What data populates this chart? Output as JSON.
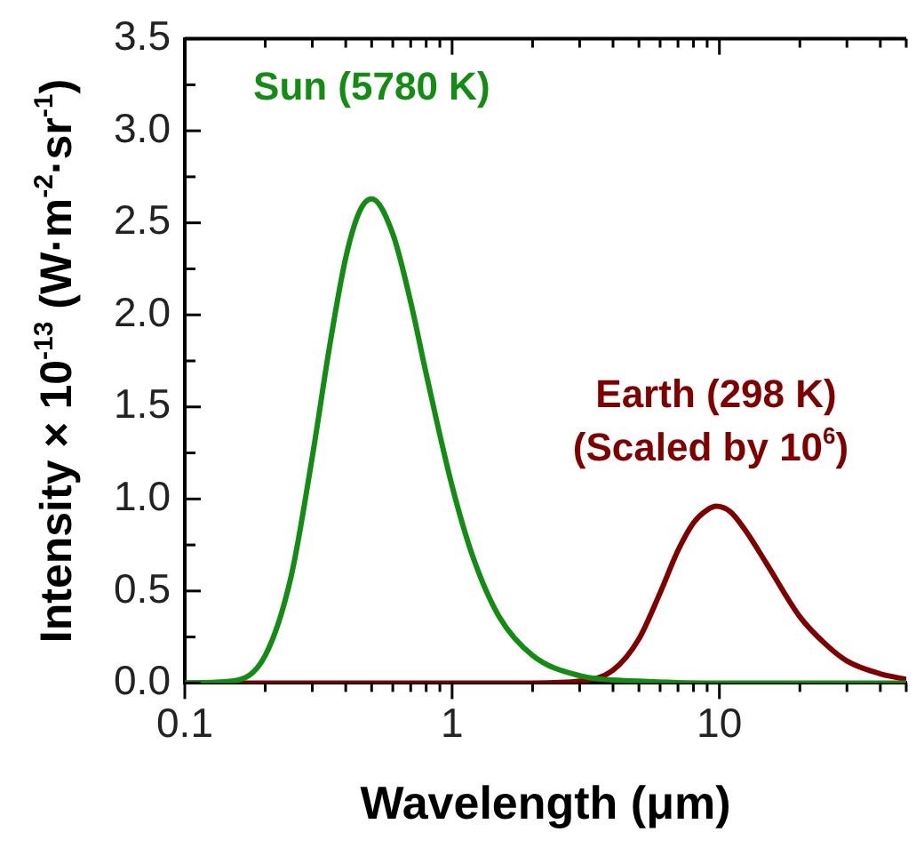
{
  "chart_data": {
    "type": "line",
    "xlabel": "Wavelength (μm)",
    "ylabel": "Intensity × 10$^{-13}$ (W·m$^{-2}$·sr$^{-1}$)",
    "log": "x",
    "xlim": [
      0.1,
      50
    ],
    "ylim": [
      0,
      3.5
    ],
    "xticks": [
      0.1,
      {
        "value": 0.2,
        "label": null
      },
      {
        "value": 0.3,
        "label": null
      },
      {
        "value": 0.4,
        "label": null
      },
      {
        "value": 0.5,
        "label": null
      },
      {
        "value": 0.6,
        "label": null
      },
      {
        "value": 0.7,
        "label": null
      },
      {
        "value": 0.8,
        "label": null
      },
      {
        "value": 0.9,
        "label": null
      },
      1,
      {
        "value": 2,
        "label": null
      },
      {
        "value": 3,
        "label": null
      },
      {
        "value": 4,
        "label": null
      },
      {
        "value": 5,
        "label": null
      },
      {
        "value": 6,
        "label": null
      },
      {
        "value": 7,
        "label": null
      },
      {
        "value": 8,
        "label": null
      },
      {
        "value": 9,
        "label": null
      },
      10,
      {
        "value": 20,
        "label": null
      },
      {
        "value": 30,
        "label": null
      },
      {
        "value": 40,
        "label": null
      },
      {
        "value": 50,
        "label": null
      }
    ],
    "yticks": [
      {
        "value": 0,
        "label": "0.0"
      },
      {
        "value": 0.25,
        "label": null
      },
      {
        "value": 0.5,
        "label": "0.5"
      },
      {
        "value": 0.75,
        "label": null
      },
      {
        "value": 1,
        "label": "1.0"
      },
      {
        "value": 1.25,
        "label": null
      },
      {
        "value": 1.5,
        "label": "1.5"
      },
      {
        "value": 1.75,
        "label": null
      },
      {
        "value": 2,
        "label": "2.0"
      },
      {
        "value": 2.25,
        "label": null
      },
      {
        "value": 2.5,
        "label": "2.5"
      },
      {
        "value": 2.75,
        "label": null
      },
      {
        "value": 3,
        "label": "3.0"
      },
      {
        "value": 3.25,
        "label": null
      },
      {
        "value": 3.5,
        "label": "3.5"
      }
    ],
    "grid": false,
    "legend": false,
    "marker": "none",
    "line_style": "solid",
    "series": [
      {
        "name": "Sun (5780 K)",
        "color": "#128c12",
        "x": [
          0.1,
          0.15,
          0.2,
          0.25,
          0.3,
          0.35,
          0.4,
          0.45,
          0.5,
          0.6,
          0.7,
          0.8,
          1,
          1.2,
          1.5,
          2,
          3,
          5,
          10,
          50
        ],
        "values": [
          0,
          0.01,
          0.15,
          0.58,
          1.23,
          1.85,
          2.31,
          2.56,
          2.63,
          2.44,
          2.07,
          1.68,
          1.07,
          0.68,
          0.36,
          0.15,
          0.04,
          0.01,
          0,
          0
        ]
      },
      {
        "name": "Earth (298 K)",
        "color": "#800000",
        "x": [
          0.1,
          2,
          3,
          4,
          5,
          6,
          7,
          8,
          9,
          9.72,
          11,
          12.5,
          15,
          20,
          25,
          30,
          40,
          50
        ],
        "values": [
          0,
          0,
          0.01,
          0.07,
          0.24,
          0.49,
          0.72,
          0.87,
          0.94,
          0.96,
          0.93,
          0.83,
          0.65,
          0.36,
          0.21,
          0.12,
          0.05,
          0.02
        ]
      }
    ],
    "annotations": [
      "(Scaled by 10$^{6}$)"
    ]
  }
}
